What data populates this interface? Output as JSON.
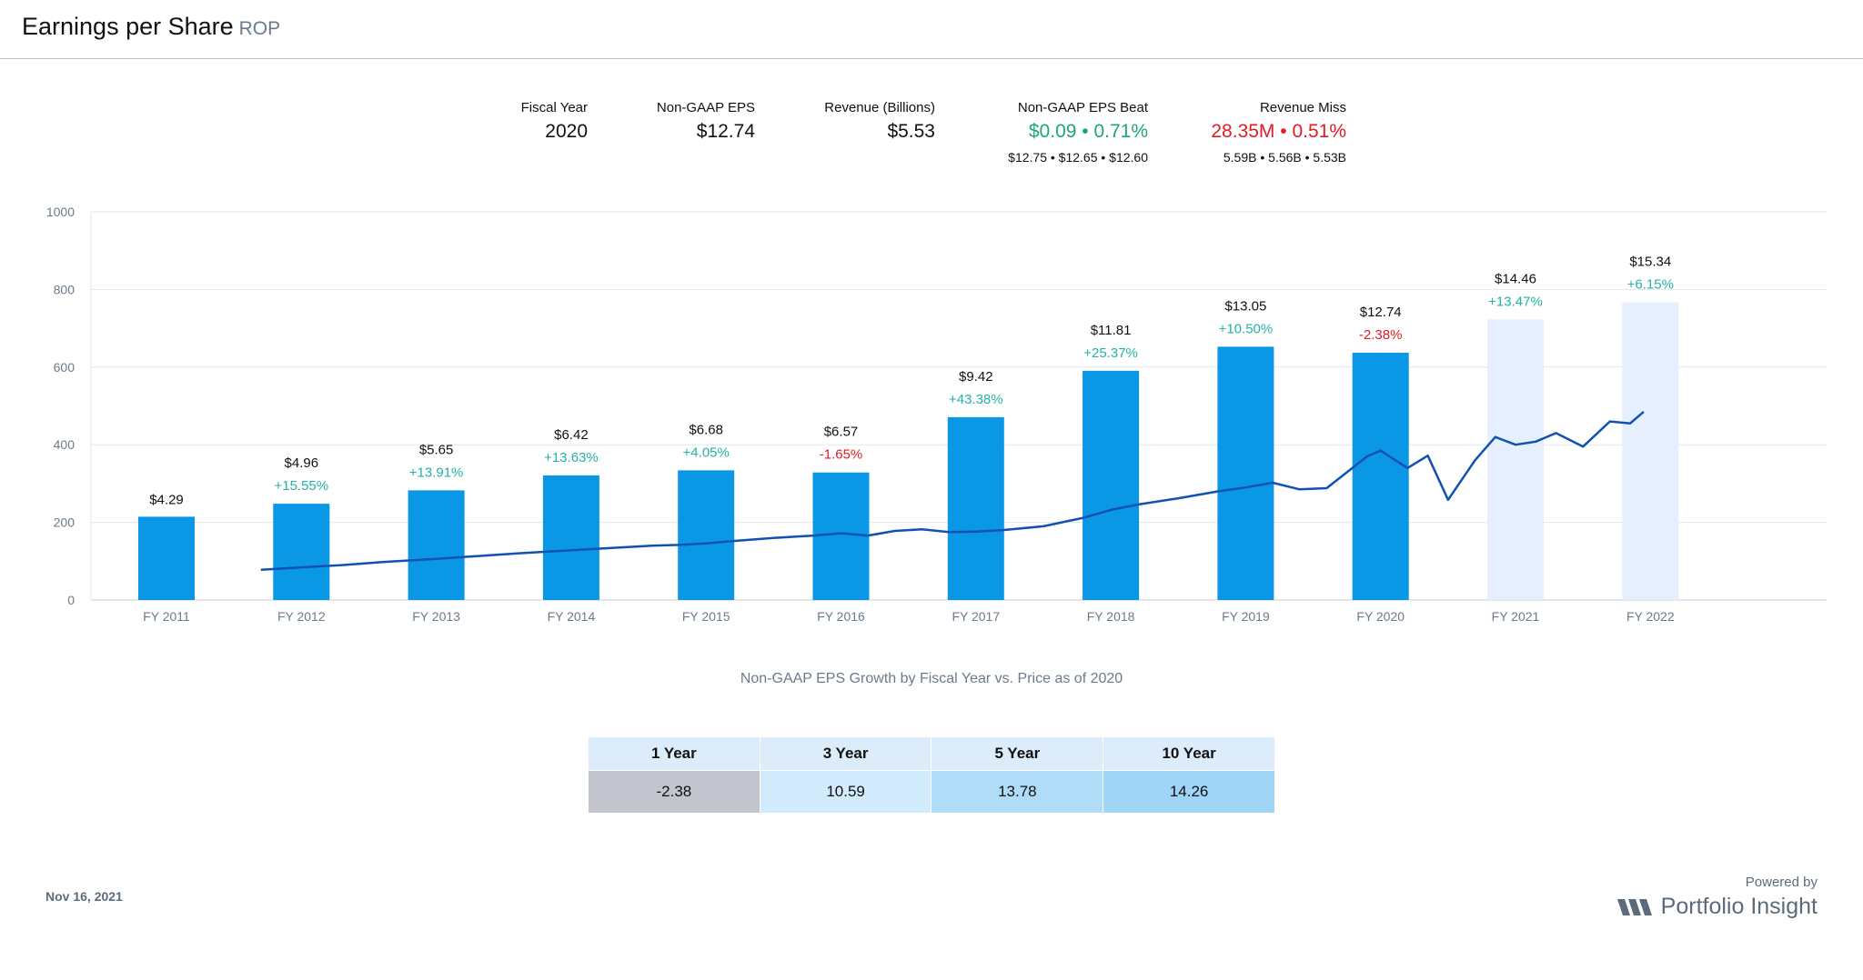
{
  "header": {
    "title": "Earnings per Share",
    "ticker": "ROP"
  },
  "stats": {
    "fiscal_year": {
      "label": "Fiscal Year",
      "value": "2020"
    },
    "eps": {
      "label": "Non-GAAP EPS",
      "value": "$12.74"
    },
    "revenue": {
      "label": "Revenue (Billions)",
      "value": "$5.53"
    },
    "eps_beat": {
      "label": "Non-GAAP EPS Beat",
      "value": "$0.09 • 0.71%",
      "sub": "$12.75 • $12.65 • $12.60"
    },
    "revenue_miss": {
      "label": "Revenue Miss",
      "value": "28.35M • 0.51%",
      "sub": "5.59B • 5.56B • 5.53B"
    }
  },
  "colors": {
    "bar": "#0a97e6",
    "forecast_bar": "#e6effd",
    "price_line": "#1152b0",
    "positive": "#23b3a6",
    "negative": "#e31b23",
    "grid": "#e3e7ec"
  },
  "chart_data": {
    "type": "bar",
    "categories": [
      "FY 2011",
      "FY 2012",
      "FY 2013",
      "FY 2014",
      "FY 2015",
      "FY 2016",
      "FY 2017",
      "FY 2018",
      "FY 2019",
      "FY 2020",
      "FY 2021",
      "FY 2022"
    ],
    "eps_labels": [
      "$4.29",
      "$4.96",
      "$5.65",
      "$6.42",
      "$6.68",
      "$6.57",
      "$9.42",
      "$11.81",
      "$13.05",
      "$12.74",
      "$14.46",
      "$15.34"
    ],
    "eps_values": [
      4.29,
      4.96,
      5.65,
      6.42,
      6.68,
      6.57,
      9.42,
      11.81,
      13.05,
      12.74,
      14.46,
      15.34
    ],
    "growth_labels": [
      "",
      "+15.55%",
      "+13.91%",
      "+13.63%",
      "+4.05%",
      "-1.65%",
      "+43.38%",
      "+25.37%",
      "+10.50%",
      "-2.38%",
      "+13.47%",
      "+6.15%"
    ],
    "forecast": [
      false,
      false,
      false,
      false,
      false,
      false,
      false,
      false,
      false,
      false,
      true,
      true
    ],
    "ylim": [
      0,
      1000
    ],
    "yticks": [
      0,
      200,
      400,
      600,
      800,
      1000
    ],
    "grid": true,
    "price_series": {
      "x": [
        2011.7,
        2012.0,
        2012.3,
        2012.6,
        2013.0,
        2013.3,
        2013.6,
        2014.0,
        2014.3,
        2014.6,
        2014.8,
        2015.0,
        2015.2,
        2015.5,
        2015.8,
        2016.0,
        2016.2,
        2016.4,
        2016.6,
        2016.8,
        2017.0,
        2017.2,
        2017.5,
        2017.8,
        2018.0,
        2018.2,
        2018.5,
        2018.8,
        2019.0,
        2019.2,
        2019.4,
        2019.6,
        2019.9,
        2020.0,
        2020.1,
        2020.2,
        2020.35,
        2020.5,
        2020.7,
        2020.85,
        2021.0,
        2021.15,
        2021.3,
        2021.5,
        2021.7,
        2021.85,
        2021.95
      ],
      "y": [
        78,
        84,
        90,
        98,
        106,
        113,
        120,
        128,
        134,
        140,
        142,
        146,
        152,
        160,
        166,
        172,
        166,
        178,
        182,
        175,
        176,
        180,
        190,
        212,
        232,
        246,
        262,
        280,
        290,
        302,
        285,
        288,
        370,
        385,
        362,
        340,
        372,
        258,
        360,
        420,
        400,
        408,
        430,
        395,
        460,
        455,
        485
      ]
    }
  },
  "caption": "Non-GAAP EPS Growth by Fiscal Year vs. Price as of 2020",
  "growth_table": {
    "headers": [
      "1 Year",
      "3 Year",
      "5 Year",
      "10 Year"
    ],
    "values": [
      "-2.38",
      "10.59",
      "13.78",
      "14.26"
    ],
    "cell_colors": [
      "#c2c5cd",
      "#d3ecfd",
      "#b0dcf8",
      "#9fd5f6"
    ]
  },
  "footer": {
    "date": "Nov 16, 2021",
    "powered_by": "Powered by",
    "brand": "Portfolio Insight"
  }
}
